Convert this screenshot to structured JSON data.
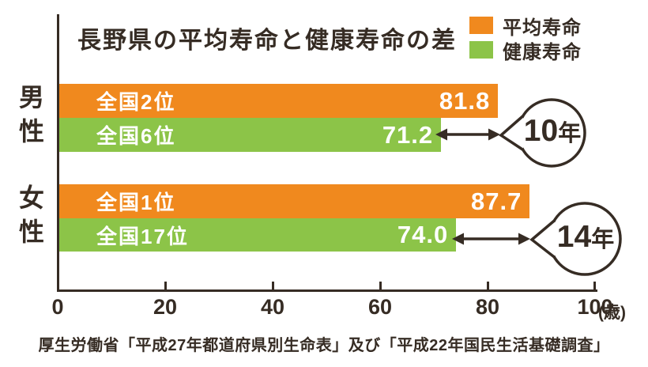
{
  "title": "長野県の平均寿命と健康寿命の差",
  "colors": {
    "average_orange": "#F0891E",
    "healthy_green": "#8CC448",
    "ink": "#362C24",
    "bar_text": "#FFFFFF",
    "background": "#FFFFFF"
  },
  "chart_data": {
    "type": "bar",
    "orientation": "horizontal",
    "title": "長野県の平均寿命と健康寿命の差",
    "categories": [
      "男性",
      "女性"
    ],
    "series": [
      {
        "name": "平均寿命",
        "color": "#F0891E",
        "values": [
          81.8,
          87.7
        ],
        "value_labels": [
          "81.8",
          "87.7"
        ],
        "rank_labels": [
          "全国2位",
          "全国1位"
        ]
      },
      {
        "name": "健康寿命",
        "color": "#8CC448",
        "values": [
          71.2,
          74.0
        ],
        "value_labels": [
          "71.2",
          "74.0"
        ],
        "rank_labels": [
          "全国6位",
          "全国17位"
        ]
      }
    ],
    "differences": [
      {
        "value": "10",
        "unit": "年"
      },
      {
        "value": "14",
        "unit": "年"
      }
    ],
    "xlim": [
      0,
      100
    ],
    "x_ticks": [
      "0",
      "20",
      "40",
      "60",
      "80",
      "100"
    ],
    "x_axis_unit": "(歳)",
    "grid": false,
    "legend_position": "top-right"
  },
  "source": "厚生労働省「平成27年都道府県別生命表」及び「平成22年国民生活基礎調査」"
}
